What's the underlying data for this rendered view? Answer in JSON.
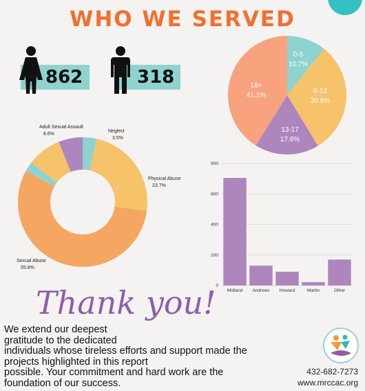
{
  "header": {
    "title": "WHO WE SERVED"
  },
  "stats": {
    "female_count": "862",
    "male_count": "318"
  },
  "colors": {
    "title": "#f36f2d",
    "stat_bar": "#8fd3cf",
    "purple": "#ad86bd",
    "teal": "#8fd3cf",
    "yellow": "#f6c36a",
    "orange": "#f5a660",
    "salmon": "#f9a27e",
    "dark": "#222222"
  },
  "chart_data": [
    {
      "type": "pie",
      "title": "",
      "slices": [
        {
          "label": "0-5",
          "value": 10.7,
          "display": "10.7%",
          "color": "#8fd3cf"
        },
        {
          "label": "6-12",
          "value": 30.6,
          "display": "30.6%",
          "color": "#f6c36a"
        },
        {
          "label": "13-17",
          "value": 17.6,
          "display": "17.6%",
          "color": "#ad86bd"
        },
        {
          "label": "18+",
          "value": 41.1,
          "display": "41.1%",
          "color": "#f9a27e"
        }
      ]
    },
    {
      "type": "pie",
      "variant": "donut",
      "title": "",
      "slices": [
        {
          "label": "Neglect",
          "value": 3.5,
          "display": "3.5%",
          "color": "#8fd3cf"
        },
        {
          "label": "Physical Abuse",
          "value": 23.7,
          "display": "23.7%",
          "color": "#f6c36a"
        },
        {
          "label": "Sexual Abuse",
          "value": 55.8,
          "display": "55.8%",
          "color": "#f5a660"
        },
        {
          "label": "",
          "value": 2.4,
          "display": "",
          "color": "#8fd3cf"
        },
        {
          "label": "Adult Sexual Assault",
          "value": 8.6,
          "display": "8.6%",
          "color": "#f6c36a"
        },
        {
          "label": "",
          "value": 6.0,
          "display": "",
          "color": "#ad86bd"
        }
      ]
    },
    {
      "type": "bar",
      "title": "",
      "xlabel": "",
      "ylabel": "",
      "categories": [
        "Midland",
        "Andrews",
        "Howard",
        "Martin",
        "Other"
      ],
      "values": [
        705,
        130,
        90,
        22,
        170
      ],
      "ylim": [
        0,
        800
      ],
      "yticks": [
        "0",
        "200",
        "400",
        "600",
        "800"
      ],
      "grid": true,
      "color": "#ad86bd"
    }
  ],
  "footer": {
    "thank_you": "Thank you!",
    "lines": [
      "We extend our deepest",
      "gratitude to the dedicated",
      "individuals whose tireless efforts and support made the",
      "projects highlighted in this report",
      "possible. Your commitment and hard work are the",
      "foundation of our success."
    ],
    "phone": "432-682-7273",
    "website": "www.mrccac.org"
  }
}
